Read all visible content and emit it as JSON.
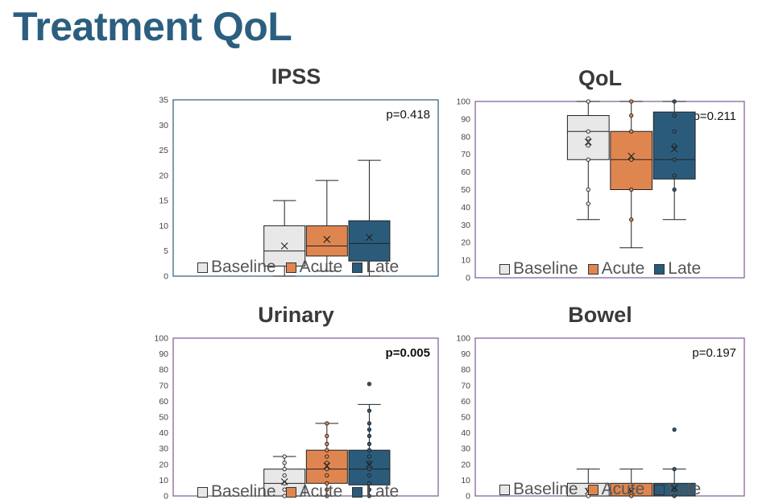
{
  "page": {
    "title": "Treatment QoL"
  },
  "colors": {
    "baseline": "#e8e8e8",
    "acute": "#df8650",
    "late": "#2b5b7b"
  },
  "legend": [
    {
      "label": "Baseline",
      "color": "#e8e8e8"
    },
    {
      "label": "Acute",
      "color": "#df8650"
    },
    {
      "label": "Late",
      "color": "#2b5b7b"
    }
  ],
  "chart_data": [
    {
      "type": "box",
      "title": "IPSS",
      "p_value": "p=0.418",
      "p_bold": false,
      "ylim": [
        0,
        35
      ],
      "yticks": [
        0,
        5,
        10,
        15,
        20,
        25,
        30,
        35
      ],
      "border_color": "#2b5b7b",
      "series": [
        {
          "name": "Baseline",
          "min": 0,
          "q1": 2,
          "median": 5,
          "q3": 10,
          "max": 15,
          "mean": 6,
          "points": []
        },
        {
          "name": "Acute",
          "min": 1,
          "q1": 4,
          "median": 6,
          "q3": 10,
          "max": 19,
          "mean": 7.3,
          "points": []
        },
        {
          "name": "Late",
          "min": 0,
          "q1": 3,
          "median": 6.5,
          "q3": 11,
          "max": 23,
          "mean": 7.7,
          "points": []
        }
      ]
    },
    {
      "type": "box",
      "title": "QoL",
      "p_value": "p=0.211",
      "p_bold": false,
      "ylim": [
        0,
        100
      ],
      "yticks": [
        0,
        10,
        20,
        30,
        40,
        50,
        60,
        70,
        80,
        90,
        100
      ],
      "border_color": "#7b5a94",
      "series": [
        {
          "name": "Baseline",
          "min": 33,
          "q1": 67,
          "median": 83,
          "q3": 92,
          "max": 100,
          "mean": 77,
          "points": [
            100,
            83,
            79,
            75,
            67,
            50,
            42
          ]
        },
        {
          "name": "Acute",
          "min": 17,
          "q1": 50,
          "median": 67,
          "q3": 83,
          "max": 100,
          "mean": 69,
          "points": [
            100,
            92,
            83,
            67,
            50,
            33
          ]
        },
        {
          "name": "Late",
          "min": 33,
          "q1": 56,
          "median": 67,
          "q3": 94,
          "max": 100,
          "mean": 73,
          "points": [
            100,
            92,
            83,
            75,
            67,
            58,
            50
          ]
        }
      ]
    },
    {
      "type": "box",
      "title": "Urinary",
      "p_value": "p=0.005",
      "p_bold": true,
      "ylim": [
        0,
        100
      ],
      "yticks": [
        0,
        10,
        20,
        30,
        40,
        50,
        60,
        70,
        80,
        90,
        100
      ],
      "border_color": "#7b5a94",
      "series": [
        {
          "name": "Baseline",
          "min": 0,
          "q1": 0,
          "median": 8,
          "q3": 17,
          "max": 25,
          "mean": 9,
          "points": [
            25,
            21,
            17,
            13,
            8,
            4,
            0
          ]
        },
        {
          "name": "Acute",
          "min": 0,
          "q1": 8,
          "median": 17,
          "q3": 29,
          "max": 46,
          "mean": 19,
          "points": [
            46,
            38,
            33,
            29,
            25,
            21,
            17,
            13,
            8,
            4,
            0
          ]
        },
        {
          "name": "Late",
          "min": 0,
          "q1": 7,
          "median": 17,
          "q3": 29,
          "max": 58,
          "mean": 20,
          "points": [
            71,
            54,
            46,
            42,
            38,
            33,
            29,
            25,
            21,
            17,
            13,
            8,
            4,
            0
          ]
        }
      ]
    },
    {
      "type": "box",
      "title": "Bowel",
      "p_value": "p=0.197",
      "p_bold": false,
      "ylim": [
        0,
        100
      ],
      "yticks": [
        0,
        10,
        20,
        30,
        40,
        50,
        60,
        70,
        80,
        90,
        100
      ],
      "border_color": "#7b5a94",
      "series": [
        {
          "name": "Baseline",
          "min": 0,
          "q1": 0,
          "median": 0,
          "q3": 8,
          "max": 17,
          "mean": 3,
          "points": [
            4,
            0
          ]
        },
        {
          "name": "Acute",
          "min": 0,
          "q1": 0,
          "median": 0,
          "q3": 8,
          "max": 17,
          "mean": 3,
          "points": [
            4,
            0
          ]
        },
        {
          "name": "Late",
          "min": 0,
          "q1": 0,
          "median": 0,
          "q3": 8,
          "max": 17,
          "mean": 5,
          "points": [
            42,
            17,
            4,
            0
          ]
        }
      ]
    }
  ]
}
